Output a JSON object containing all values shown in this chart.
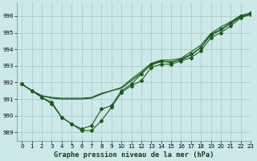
{
  "title": "Graphe pression niveau de la mer (hPa)",
  "bg_color": "#cce8e8",
  "grid_color": "#aacccc",
  "line_color": "#1a5c1a",
  "xlim": [
    -0.5,
    23
  ],
  "ylim": [
    988.5,
    996.8
  ],
  "yticks": [
    989,
    990,
    991,
    992,
    993,
    994,
    995,
    996
  ],
  "xticks": [
    0,
    1,
    2,
    3,
    4,
    5,
    6,
    7,
    8,
    9,
    10,
    11,
    12,
    13,
    14,
    15,
    16,
    17,
    18,
    19,
    20,
    21,
    22,
    23
  ],
  "series_with_markers": [
    [
      991.9,
      991.5,
      991.1,
      990.8,
      989.9,
      989.5,
      989.1,
      989.1,
      989.7,
      990.5,
      991.4,
      991.8,
      992.1,
      992.9,
      993.1,
      993.1,
      993.3,
      993.5,
      993.9,
      994.7,
      995.0,
      995.4,
      995.9,
      996.1
    ],
    [
      991.9,
      991.5,
      991.1,
      990.7,
      989.9,
      989.5,
      989.2,
      989.4,
      990.4,
      990.6,
      991.5,
      991.9,
      992.5,
      993.1,
      993.3,
      993.2,
      993.4,
      993.7,
      994.1,
      994.9,
      995.2,
      995.6,
      996.0,
      996.2
    ]
  ],
  "series_no_markers": [
    [
      991.9,
      991.5,
      991.2,
      991.1,
      991.05,
      991.05,
      991.05,
      991.1,
      991.35,
      991.5,
      991.65,
      992.1,
      992.55,
      993.05,
      993.25,
      993.25,
      993.35,
      993.65,
      994.1,
      994.85,
      995.15,
      995.55,
      995.95,
      996.1
    ],
    [
      991.9,
      991.5,
      991.2,
      991.05,
      991.0,
      991.0,
      991.0,
      991.05,
      991.3,
      991.5,
      991.7,
      992.2,
      992.65,
      993.15,
      993.35,
      993.35,
      993.45,
      993.85,
      994.25,
      994.95,
      995.35,
      995.65,
      996.05,
      996.15
    ]
  ]
}
